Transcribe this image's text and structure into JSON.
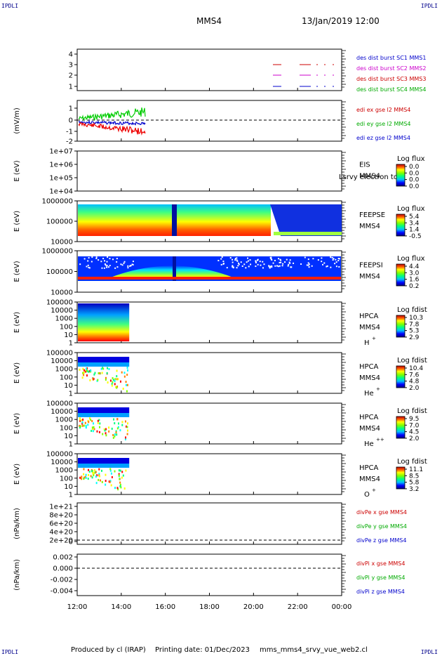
{
  "corner_labels": {
    "tl": "IPDLI",
    "tr": "IPDLI",
    "bl": "IPDLI",
    "br": "IPDLI"
  },
  "header": {
    "title": "MMS4",
    "date": "13/Jan/2019 12:00"
  },
  "footer": {
    "produced": "Produced by cl (IRAP)",
    "printing": "Printing date: 01/Dec/2023",
    "script": "mms_mms4_srvy_vue_web2.cl"
  },
  "x_axis": {
    "ticks": [
      "12:00",
      "14:00",
      "16:00",
      "18:00",
      "20:00",
      "22:00",
      "00:00"
    ]
  },
  "colorbar_stops": [
    "#000080",
    "#0000ff",
    "#00a0ff",
    "#00ffff",
    "#00ff80",
    "#80ff00",
    "#ffff00",
    "#ff8000",
    "#ff0000",
    "#a00000"
  ],
  "panels": [
    {
      "id": "burst",
      "ylabel": "",
      "yticks": [
        "4",
        "3",
        "2",
        "1"
      ],
      "legend": [
        {
          "text": "des dist burst SC1 MMS1",
          "color": "#0000cc"
        },
        {
          "text": "des dist burst SC2 MMS2",
          "color": "#cc00cc"
        },
        {
          "text": "des dist burst SC3 MMS3",
          "color": "#cc0000"
        },
        {
          "text": "des dist burst SC4 MMS4",
          "color": "#00aa00"
        }
      ]
    },
    {
      "id": "edi",
      "ylabel": "(mV/m)",
      "yticks": [
        "1",
        "0",
        "-1",
        "-2"
      ],
      "legend": [
        {
          "text": "edi ex gse l2 MMS4",
          "color": "#cc0000"
        },
        {
          "text": "edi ey gse l2 MMS4",
          "color": "#00aa00"
        },
        {
          "text": "edi ez gse l2 MMS4",
          "color": "#0000cc"
        }
      ]
    },
    {
      "id": "eis",
      "ylabel": "E (eV)",
      "yticks": [
        "1e+07",
        "1e+06",
        "1e+05",
        "1e+04"
      ],
      "instrument": "EIS",
      "sub": "MMS4",
      "extra": "Lsrvy electron to",
      "cbar_title": "Log flux",
      "cbar_ticks": [
        "0.0",
        "0.0",
        "0.0",
        "0.0"
      ]
    },
    {
      "id": "feepse",
      "ylabel": "E (eV)",
      "yticks": [
        "1000000",
        "100000",
        "10000"
      ],
      "instrument": "FEEPSE",
      "sub": "MMS4",
      "cbar_title": "Log flux",
      "cbar_ticks": [
        "5.4",
        "3.4",
        "1.4",
        "-0.5"
      ]
    },
    {
      "id": "feepsi",
      "ylabel": "E (eV)",
      "yticks": [
        "1000000",
        "100000",
        "10000"
      ],
      "instrument": "FEEPSI",
      "sub": "MMS4",
      "cbar_title": "Log flux",
      "cbar_ticks": [
        "4.4",
        "3.0",
        "1.6",
        "0.2"
      ]
    },
    {
      "id": "hpca_h",
      "ylabel": "E (eV)",
      "yticks": [
        "100000",
        "10000",
        "1000",
        "100",
        "10",
        "1"
      ],
      "instrument": "HPCA",
      "sub": "MMS4",
      "species": "H",
      "charge": "+",
      "cbar_title": "Log fdist",
      "cbar_ticks": [
        "10.3",
        "7.8",
        "5.3",
        "2.9"
      ]
    },
    {
      "id": "hpca_he",
      "ylabel": "E (eV)",
      "yticks": [
        "100000",
        "10000",
        "1000",
        "100",
        "10",
        "1"
      ],
      "instrument": "HPCA",
      "sub": "MMS4",
      "species": "He",
      "charge": "+",
      "cbar_title": "Log fdist",
      "cbar_ticks": [
        "10.4",
        "7.6",
        "4.8",
        "2.0"
      ]
    },
    {
      "id": "hpca_hepp",
      "ylabel": "E (eV)",
      "yticks": [
        "100000",
        "10000",
        "1000",
        "100",
        "10",
        "1"
      ],
      "instrument": "HPCA",
      "sub": "MMS4",
      "species": "He",
      "charge": "++",
      "cbar_title": "Log fdist",
      "cbar_ticks": [
        "9.5",
        "7.0",
        "4.5",
        "2.0"
      ]
    },
    {
      "id": "hpca_o",
      "ylabel": "E (eV)",
      "yticks": [
        "100000",
        "10000",
        "1000",
        "100",
        "10",
        "1"
      ],
      "instrument": "HPCA",
      "sub": "MMS4",
      "species": "O",
      "charge": "+",
      "cbar_title": "Log fdist",
      "cbar_ticks": [
        "11.1",
        "8.5",
        "5.8",
        "3.2"
      ]
    },
    {
      "id": "divpe",
      "ylabel": "(nPa/km)",
      "yticks": [
        "1e+21",
        "8e+20",
        "6e+20",
        "4e+20",
        "2e+20",
        "0"
      ],
      "legend": [
        {
          "text": "divPe x gse MMS4",
          "color": "#cc0000"
        },
        {
          "text": "divPe y gse MMS4",
          "color": "#00aa00"
        },
        {
          "text": "divPe z gse MMS4",
          "color": "#0000cc"
        }
      ]
    },
    {
      "id": "divpi",
      "ylabel": "(nPa/km)",
      "yticks": [
        "0.002",
        "0.000",
        "-0.002",
        "-0.004"
      ],
      "legend": [
        {
          "text": "divPi x gse MMS4",
          "color": "#cc0000"
        },
        {
          "text": "divPi y gse MMS4",
          "color": "#00aa00"
        },
        {
          "text": "divPi z gse MMS4",
          "color": "#0000cc"
        }
      ]
    }
  ],
  "chart_data": {
    "type": "heatmap",
    "title": "MMS4",
    "xlim": [
      "12:00",
      "00:00"
    ],
    "notes": "Stacked multi-panel time series; spectrogram panels (EIS, FEEPSE, FEEPSI, HPCA H+, He+, He++, O+) and line panels (EDI E-field, divPe, divPi).",
    "edi_ylim": [
      -2.5,
      1.8
    ],
    "divpi_ylim": [
      -0.005,
      0.003
    ],
    "divpe_ylim": [
      -1e+19,
      1.1e+21
    ]
  }
}
